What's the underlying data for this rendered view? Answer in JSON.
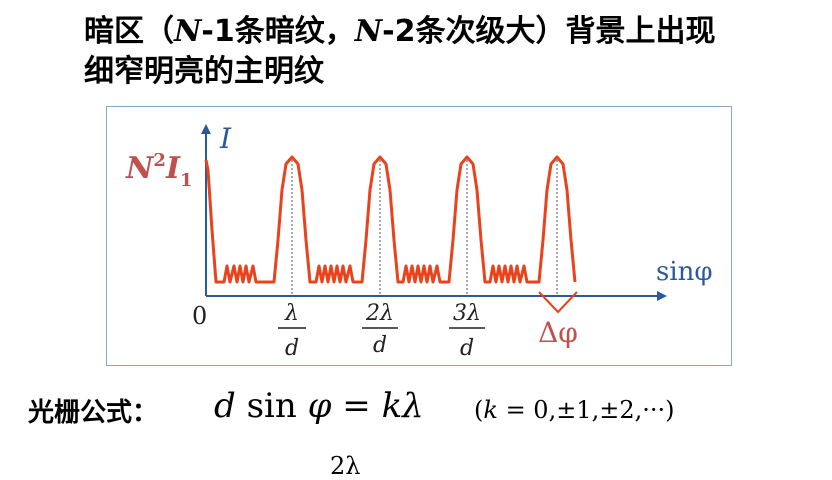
{
  "heading": {
    "line1_a": "暗区（",
    "line1_n1": "N",
    "line1_b": "-1条暗纹，",
    "line1_n2": "N",
    "line1_c": "-2条次级大）背景上出现",
    "line2": "细窄明亮的主明纹"
  },
  "diagram": {
    "y_axis_label": "I",
    "x_axis_label": "sinφ",
    "origin_label": "0",
    "peak_label_n": "N",
    "peak_label_sup": "2",
    "peak_label_i": "I",
    "peak_label_sub": "1",
    "tick_labels": [
      {
        "num": "λ",
        "den": "d"
      },
      {
        "num": "2λ",
        "den": "d"
      },
      {
        "num": "3λ",
        "den": "d"
      }
    ],
    "width_label": "Δφ",
    "curve_color": "#e8431c",
    "axis_color": "#2a5a9c",
    "peak_label_color": "#c0504d"
  },
  "formula": {
    "label": "光栅公式：",
    "d": "d",
    "sin": "sin",
    "phi": "φ",
    "eq": "=",
    "k": "k",
    "lambda": "λ",
    "condition_open": "(",
    "condition_k": "k",
    "condition_rest": "= 0,±1,±2,···)"
  },
  "partial": "2λ"
}
